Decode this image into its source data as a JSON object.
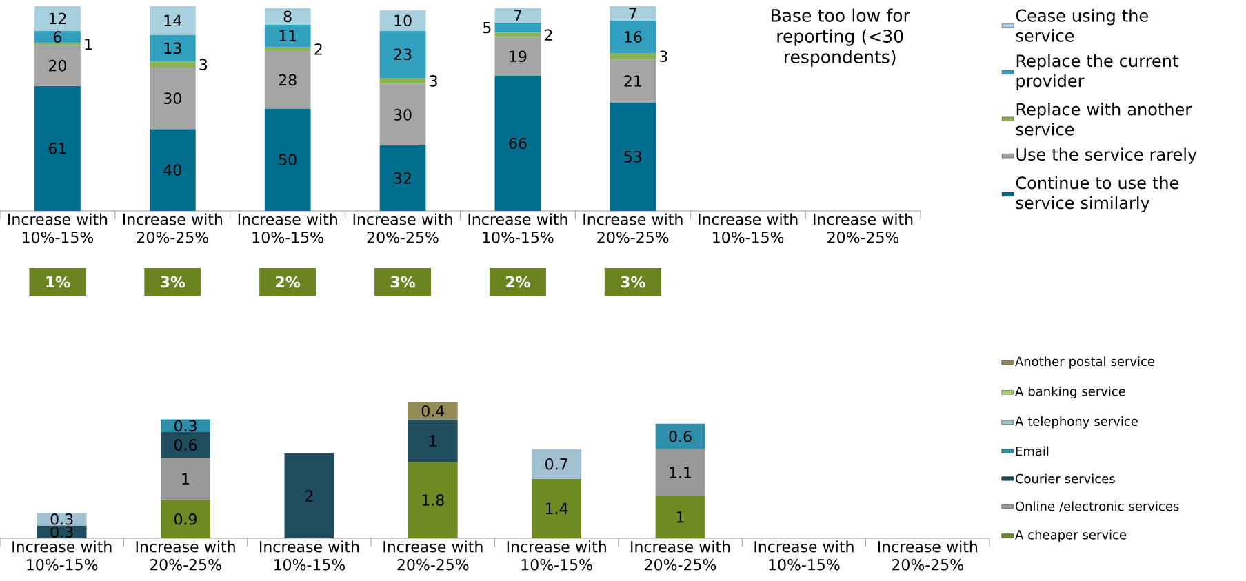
{
  "chart_data": [
    {
      "type": "bar",
      "stacked": true,
      "data_labels": true,
      "legend": "right",
      "categories": [
        "Increase with 10%-15%",
        "Increase with 20%-25%",
        "Increase with 10%-15%",
        "Increase with 20%-25%",
        "Increase with 10%-15%",
        "Increase with 20%-25%",
        "Increase with 10%-15%",
        "Increase with 20%-25%"
      ],
      "series": [
        {
          "name": "Continue to use the service similarly",
          "color": "#006e8c",
          "values": [
            61,
            40,
            50,
            32,
            66,
            53,
            null,
            null
          ]
        },
        {
          "name": "Use the service rarely",
          "color": "#a5a5a5",
          "values": [
            20,
            30,
            28,
            30,
            19,
            21,
            null,
            null
          ]
        },
        {
          "name": "Replace with another service",
          "color": "#8db255",
          "values": [
            1,
            3,
            2,
            3,
            2,
            3,
            null,
            null
          ]
        },
        {
          "name": "Replace the current provider",
          "color": "#31a0be",
          "values": [
            6,
            13,
            11,
            23,
            5,
            16,
            null,
            null
          ]
        },
        {
          "name": "Cease using the service",
          "color": "#a9d0df",
          "values": [
            12,
            14,
            8,
            10,
            7,
            7,
            null,
            null
          ]
        }
      ],
      "annotations": [
        "Base too low for reporting (<30 respondents)",
        "1%",
        "3%",
        "2%",
        "3%",
        "2%",
        "3%"
      ]
    },
    {
      "type": "bar",
      "stacked": true,
      "data_labels": true,
      "legend": "right",
      "categories": [
        "Increase with 10%-15%",
        "Increase with 20%-25%",
        "Increase with 10%-15%",
        "Increase with 20%-25%",
        "Increase with 10%-15%",
        "Increase with 20%-25%",
        "Increase with 10%-15%",
        "Increase with 20%-25%"
      ],
      "series": [
        {
          "name": "A cheaper service",
          "color": "#6e8a22",
          "values": [
            null,
            0.9,
            null,
            1.8,
            1.4,
            1,
            null,
            null
          ]
        },
        {
          "name": "Online /electronic services",
          "color": "#999999",
          "values": [
            null,
            1,
            null,
            null,
            null,
            1.1,
            null,
            null
          ]
        },
        {
          "name": "Courier services",
          "color": "#1f4d5e",
          "values": [
            0.3,
            0.6,
            2,
            1,
            null,
            null,
            null,
            null
          ]
        },
        {
          "name": "Email",
          "color": "#2f8fab",
          "values": [
            null,
            0.3,
            null,
            null,
            null,
            0.6,
            null,
            null
          ]
        },
        {
          "name": "A telephony service",
          "color": "#a2c0cf",
          "values": [
            0.3,
            null,
            null,
            null,
            0.7,
            null,
            null,
            null
          ]
        },
        {
          "name": "A banking service",
          "color": "#a6cd72",
          "values": [
            null,
            null,
            null,
            null,
            null,
            null,
            null,
            null
          ]
        },
        {
          "name": "Another postal service",
          "color": "#948a54",
          "values": [
            null,
            null,
            null,
            0.4,
            null,
            null,
            null,
            null
          ]
        }
      ]
    }
  ]
}
